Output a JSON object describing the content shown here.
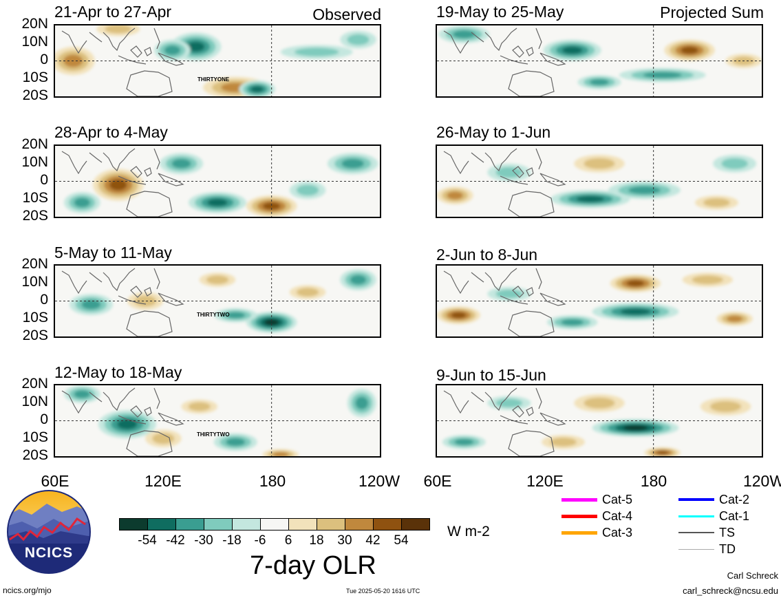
{
  "header": {
    "left_tag": "Observed",
    "right_tag": "Projected Sum"
  },
  "panels_left": [
    {
      "title": "21-Apr to 27-Apr",
      "storm_label": "THIRTYONE"
    },
    {
      "title": "28-Apr to 4-May",
      "storm_label": ""
    },
    {
      "title": "5-May to 11-May",
      "storm_label": "THIRTYTWO"
    },
    {
      "title": "12-May to 18-May",
      "storm_label": "THIRTYTWO"
    }
  ],
  "panels_right": [
    {
      "title": "19-May to 25-May"
    },
    {
      "title": "26-May to 1-Jun"
    },
    {
      "title": "2-Jun to 8-Jun"
    },
    {
      "title": "9-Jun to 15-Jun"
    }
  ],
  "lat_labels": [
    "20N",
    "10N",
    "0",
    "10S",
    "20S"
  ],
  "lon_labels": [
    "60E",
    "120E",
    "180",
    "120W"
  ],
  "colorbar": {
    "colors": [
      "#0c3b2e",
      "#0f6d60",
      "#3a9e91",
      "#7fcbbd",
      "#c4e7df",
      "#f6f6f4",
      "#f2e2bb",
      "#dcc07e",
      "#c0883d",
      "#8f5210",
      "#5a3209"
    ],
    "labels": [
      "-54",
      "-42",
      "-30",
      "-18",
      "-6",
      "6",
      "18",
      "30",
      "42",
      "54"
    ],
    "units": "W m-2",
    "title": "7-day OLR"
  },
  "storm_legend": [
    {
      "label": "Cat-5",
      "color": "#ff00ff"
    },
    {
      "label": "Cat-4",
      "color": "#ff0000"
    },
    {
      "label": "Cat-3",
      "color": "#ffa500"
    },
    {
      "label": "Cat-2",
      "color": "#0000ff"
    },
    {
      "label": "Cat-1",
      "color": "#00ffff"
    },
    {
      "label": "TS",
      "color": "#555555"
    },
    {
      "label": "TD",
      "color": "#aaaaaa"
    }
  ],
  "logo": {
    "text": "NCICS"
  },
  "footer": {
    "url": "ncics.org/mjo",
    "timestamp": "Tue 2025-05-20 1616 UTC",
    "author": "Carl Schreck",
    "email": "carl_schreck@ncsu.edu"
  }
}
